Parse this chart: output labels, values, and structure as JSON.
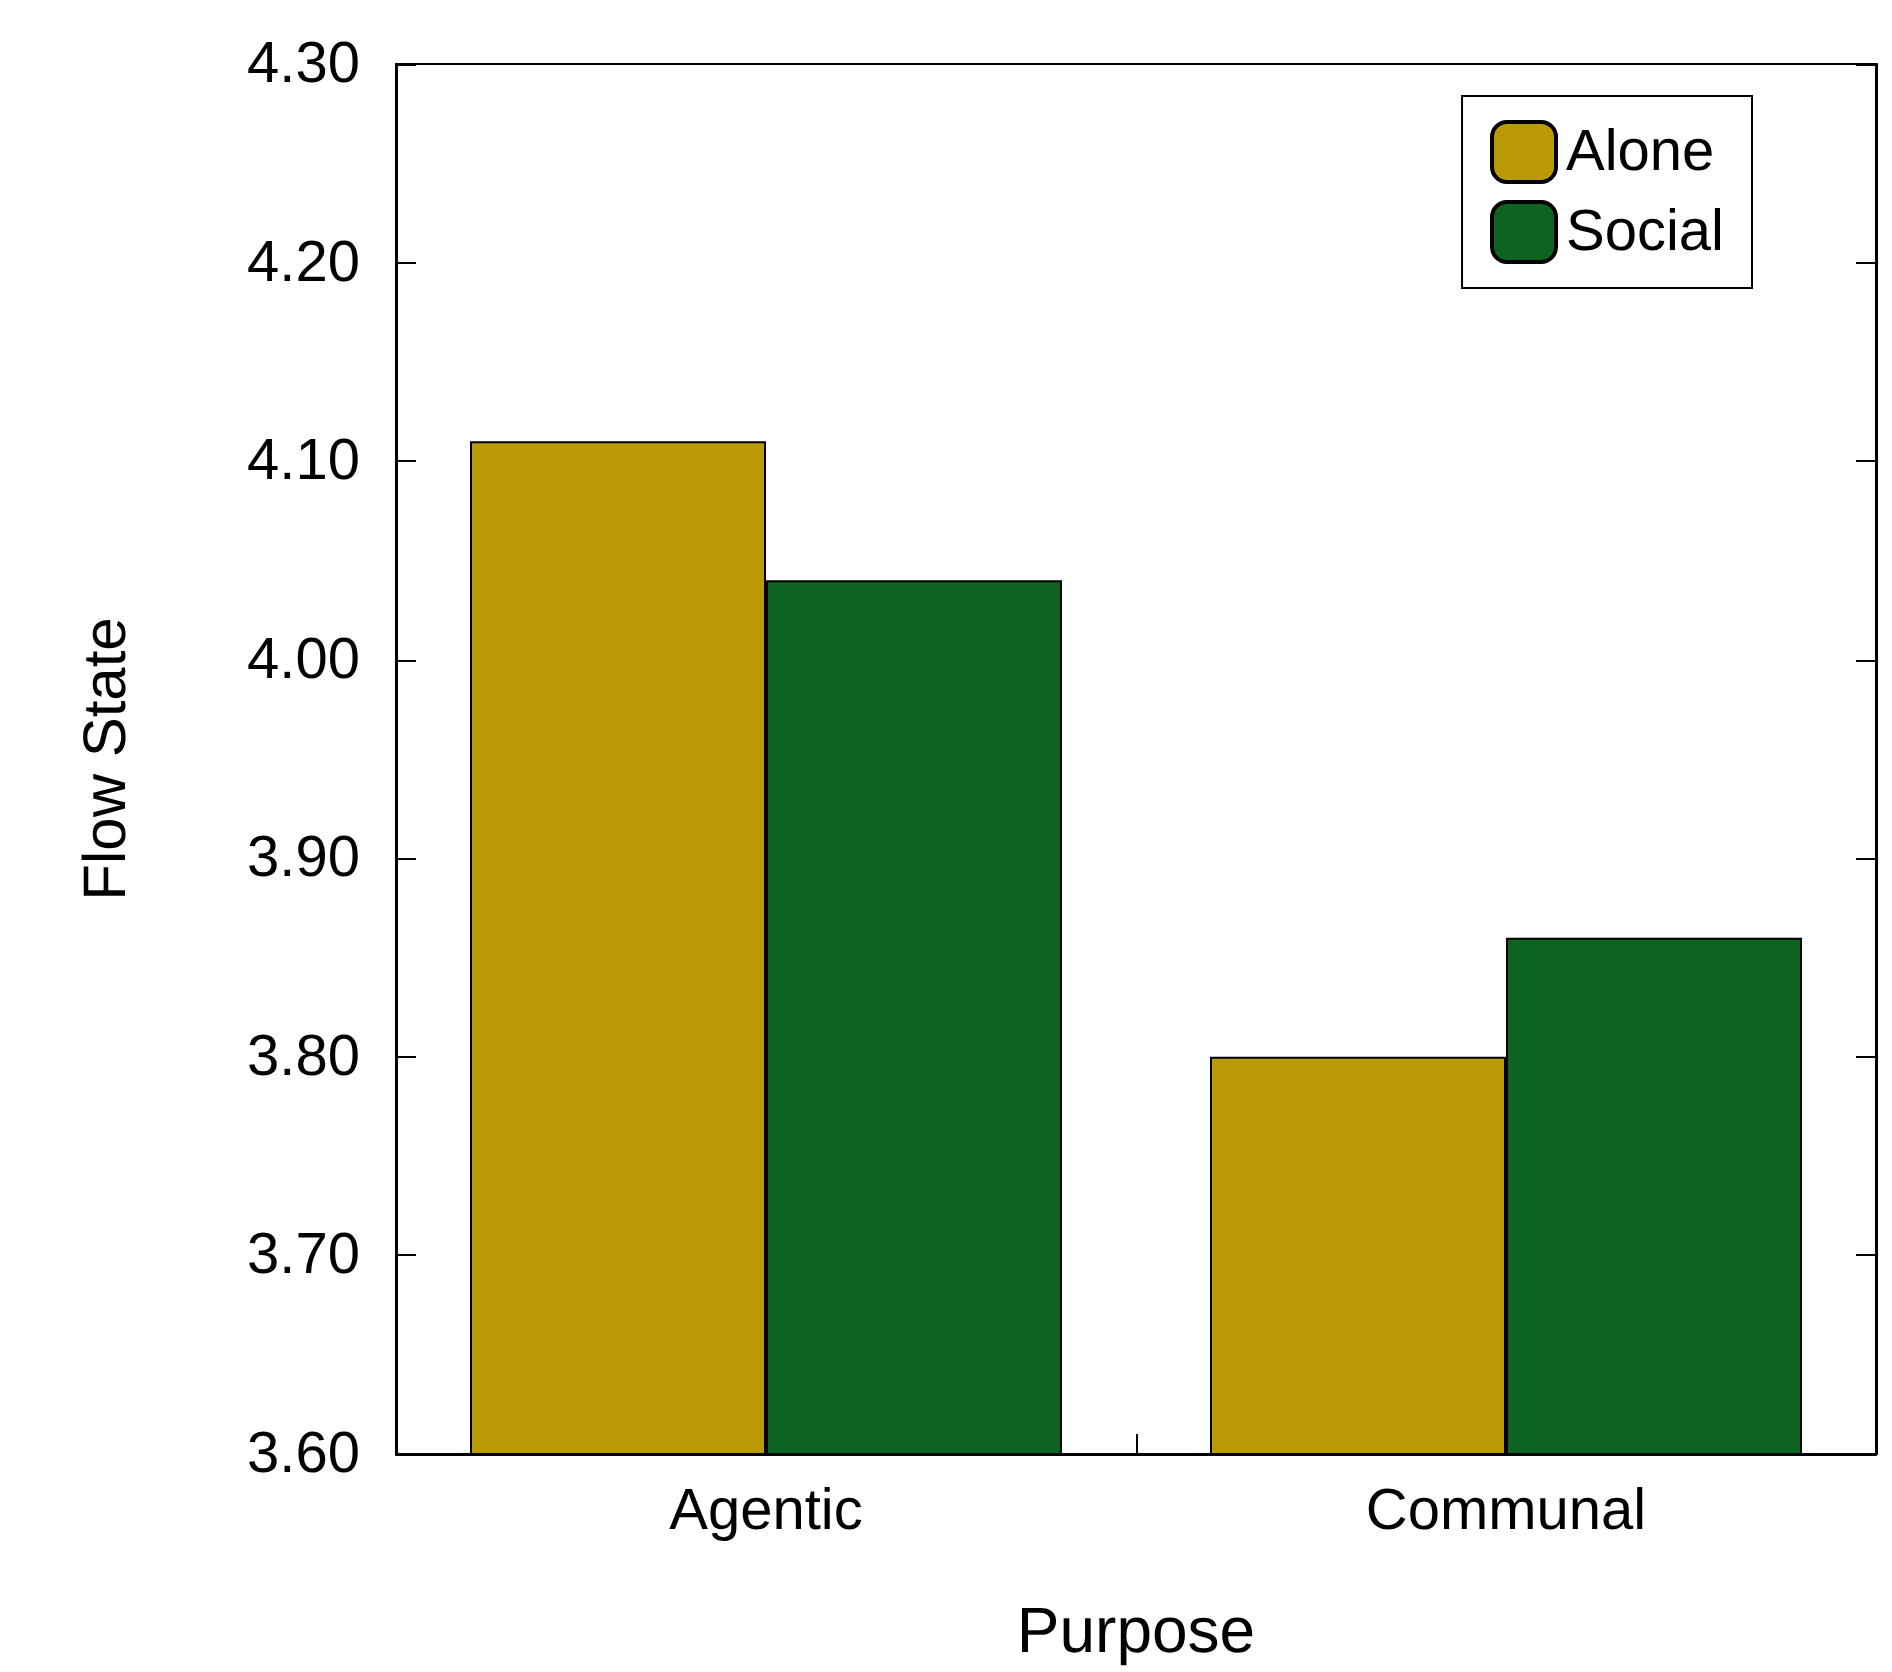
{
  "chart_data": {
    "type": "bar",
    "xlabel": "Purpose",
    "ylabel": "Flow State",
    "categories": [
      "Agentic",
      "Communal"
    ],
    "series": [
      {
        "name": "Alone",
        "color": "#bb9a08",
        "values": [
          4.11,
          3.8
        ]
      },
      {
        "name": "Social",
        "color": "#0c6420",
        "values": [
          4.04,
          3.86
        ]
      }
    ],
    "ylim": [
      3.6,
      4.3
    ],
    "yticks": [
      {
        "value": 3.6,
        "label": "3.60"
      },
      {
        "value": 3.7,
        "label": "3.70"
      },
      {
        "value": 3.8,
        "label": "3.80"
      },
      {
        "value": 3.9,
        "label": "3.90"
      },
      {
        "value": 4.0,
        "label": "4.00"
      },
      {
        "value": 4.1,
        "label": "4.10"
      },
      {
        "value": 4.2,
        "label": "4.20"
      },
      {
        "value": 4.3,
        "label": "4.30"
      }
    ],
    "grid": false,
    "legend": "top right"
  }
}
